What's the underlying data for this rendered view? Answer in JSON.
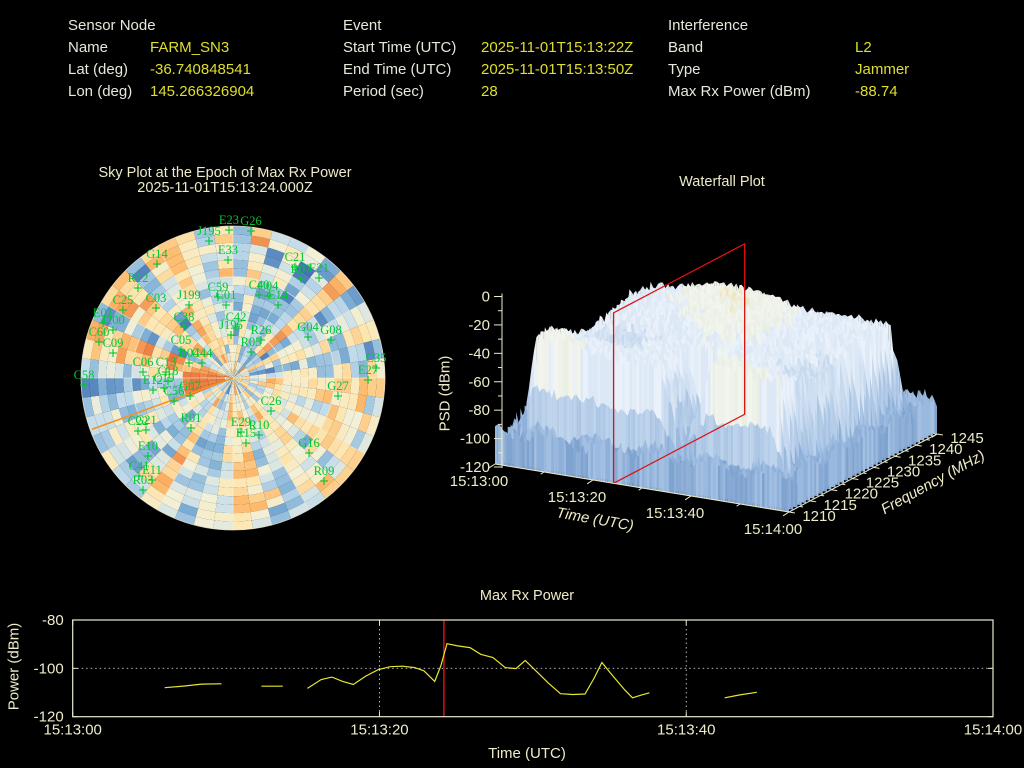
{
  "header": {
    "sensor_node": {
      "title": "Sensor Node",
      "rows": [
        {
          "label": "Name",
          "value": "FARM_SN3"
        },
        {
          "label": "Lat (deg)",
          "value": "-36.740848541"
        },
        {
          "label": "Lon (deg)",
          "value": "145.266326904"
        }
      ]
    },
    "event": {
      "title": "Event",
      "rows": [
        {
          "label": "Start Time (UTC)",
          "value": "2025-11-01T15:13:22Z"
        },
        {
          "label": "End Time (UTC)",
          "value": "2025-11-01T15:13:50Z"
        },
        {
          "label": "Period (sec)",
          "value": "28"
        }
      ]
    },
    "interference": {
      "title": "Interference",
      "rows": [
        {
          "label": "Band",
          "value": "L2"
        },
        {
          "label": "Type",
          "value": "Jammer"
        },
        {
          "label": "Max Rx Power (dBm)",
          "value": "-88.74"
        }
      ]
    }
  },
  "colors": {
    "background": "#000000",
    "label_text": "#e7e7da",
    "value_text": "#dfdf2e",
    "plot_text": "#eeebc8",
    "satellite_green": "#00c832",
    "trace_yellow": "#e6e62e",
    "epoch_red": "#dd1111",
    "bearing_orange": "#f59220",
    "heatmap_low_blue": "#3a68b0",
    "heatmap_mid_cream": "#f2f0d8",
    "heatmap_high_orange": "#e8703a",
    "surface_pale_blue": "#cfe1f3",
    "surface_cream": "#f3ebcf"
  },
  "chart_data": [
    {
      "type": "heatmap",
      "id": "skyplot",
      "title": "Sky Plot at the Epoch of Max Rx Power",
      "subtitle": "2025-11-01T15:13:24.000Z",
      "projection": "polar azimuth/elevation sky map",
      "colormap": "blue (low) / cream (mid) / orange (high)",
      "elevation_rings_deg": [
        30,
        60
      ],
      "azimuth_spoke_step_deg": 30,
      "interference_bearing_deg": 250,
      "interference_streak": {
        "azimuth_deg": [
          248,
          280
        ],
        "elevation_note": "deep orange cells near zenith toward WSW"
      },
      "satellites": [
        [
          "E23",
          229,
          230
        ],
        [
          "G26",
          251,
          231
        ],
        [
          "J195",
          209,
          241
        ],
        [
          "E33",
          228,
          260
        ],
        [
          "G14",
          157,
          264
        ],
        [
          "C21",
          295,
          267
        ],
        [
          "R07",
          301,
          279
        ],
        [
          "E21",
          319,
          278
        ],
        [
          "R12",
          138,
          288
        ],
        [
          "C59",
          218,
          297
        ],
        [
          "C01",
          226,
          305
        ],
        [
          "C40",
          259,
          295
        ],
        [
          "C04",
          268,
          296
        ],
        [
          "E14",
          278,
          305
        ],
        [
          "J199",
          189,
          305
        ],
        [
          "C03",
          156,
          308
        ],
        [
          "C25",
          123,
          310
        ],
        [
          "E01",
          103,
          323
        ],
        [
          "J200",
          113,
          330
        ],
        [
          "C60",
          99,
          342
        ],
        [
          "C09",
          113,
          353
        ],
        [
          "C38",
          184,
          327
        ],
        [
          "C05",
          181,
          350
        ],
        [
          "C42",
          236,
          327
        ],
        [
          "J196",
          231,
          335
        ],
        [
          "R26",
          261,
          340
        ],
        [
          "R05",
          251,
          352
        ],
        [
          "G04",
          308,
          337
        ],
        [
          "G08",
          331,
          340
        ],
        [
          "C35",
          376,
          368
        ],
        [
          "E27",
          368,
          380
        ],
        [
          "C06",
          143,
          372
        ],
        [
          "C13",
          166,
          372
        ],
        [
          "R04",
          189,
          363
        ],
        [
          "C44",
          202,
          363
        ],
        [
          "C18",
          168,
          381
        ],
        [
          "C19",
          164,
          388
        ],
        [
          "C58",
          84,
          385
        ],
        [
          "E12",
          153,
          390
        ],
        [
          "C56",
          174,
          401
        ],
        [
          "G07",
          190,
          396
        ],
        [
          "C22",
          138,
          431
        ],
        [
          "G21",
          146,
          430
        ],
        [
          "E10",
          148,
          456
        ],
        [
          "R01",
          191,
          428
        ],
        [
          "E29",
          241,
          432
        ],
        [
          "E15",
          246,
          443
        ],
        [
          "R10",
          259,
          435
        ],
        [
          "C26",
          271,
          411
        ],
        [
          "G27",
          338,
          396
        ],
        [
          "G16",
          309,
          453
        ],
        [
          "R09",
          324,
          481
        ],
        [
          "C41",
          139,
          476
        ],
        [
          "E11",
          152,
          480
        ],
        [
          "R03",
          143,
          490
        ]
      ]
    },
    {
      "type": "surface3d",
      "id": "waterfall",
      "title": "Waterfall Plot",
      "xlabel": "Time (UTC)",
      "ylabel": "Frequency (MHz)",
      "zlabel": "PSD (dBm)",
      "x_ticks": [
        "15:13:00",
        "15:13:20",
        "15:13:40",
        "15:14:00"
      ],
      "y_ticks": [
        1210,
        1215,
        1220,
        1225,
        1230,
        1235,
        1240,
        1245
      ],
      "z_ticks": [
        0,
        -20,
        -40,
        -60,
        -80,
        -100,
        -120
      ],
      "z_range": [
        -120,
        0
      ],
      "noise_floor_dbm": -96,
      "signal_plateau_dbm": [
        -45,
        -22
      ],
      "signal_band_mhz": [
        1213,
        1243
      ],
      "signal_active_s": [
        3,
        56
      ],
      "epoch_slice": {
        "time": "15:13:24",
        "color": "#dd1111"
      }
    },
    {
      "type": "line",
      "id": "max-rx-power",
      "title": "Max Rx Power",
      "xlabel": "Time (UTC)",
      "ylabel": "Power (dBm)",
      "x_ticks": [
        "15:13:00",
        "15:13:20",
        "15:13:40",
        "15:14:00"
      ],
      "x_tick_s": [
        0,
        20,
        40,
        60
      ],
      "y_ticks": [
        -80,
        -100,
        -120
      ],
      "y_range": [
        -120,
        -80
      ],
      "grid_y": [
        -80,
        -100
      ],
      "grid_x_s": [
        20,
        40
      ],
      "epoch_line_s": 24.2,
      "series": {
        "name": "Max Rx Power (dBm)",
        "color": "#e6e62e",
        "segments": [
          [
            [
              6,
              -108
            ],
            [
              7.3,
              -107.3
            ],
            [
              8.4,
              -106.5
            ],
            [
              9.7,
              -106.4
            ]
          ],
          [
            [
              12.3,
              -107.4
            ],
            [
              13.7,
              -107.4
            ]
          ],
          [
            [
              15.3,
              -108.3
            ],
            [
              16.2,
              -104.6
            ],
            [
              16.9,
              -103.6
            ],
            [
              17.6,
              -105.4
            ],
            [
              18.3,
              -106.7
            ],
            [
              19.1,
              -103.2
            ],
            [
              19.9,
              -100.6
            ],
            [
              20.7,
              -99.3
            ],
            [
              21.5,
              -99.1
            ],
            [
              22.3,
              -99.7
            ],
            [
              22.9,
              -101
            ],
            [
              23.6,
              -105.4
            ],
            [
              24,
              -99
            ],
            [
              24.4,
              -89.8
            ],
            [
              25.1,
              -90.7
            ],
            [
              25.9,
              -91.4
            ],
            [
              26.6,
              -94.2
            ],
            [
              27.4,
              -95.5
            ],
            [
              28.2,
              -99.7
            ],
            [
              28.9,
              -100.1
            ],
            [
              29.5,
              -96.7
            ],
            [
              30.2,
              -101
            ],
            [
              31,
              -106
            ],
            [
              31.8,
              -110.5
            ],
            [
              32.6,
              -110.8
            ],
            [
              33.4,
              -110.6
            ],
            [
              34,
              -104
            ],
            [
              34.5,
              -97.6
            ],
            [
              35.2,
              -103
            ],
            [
              36,
              -109
            ],
            [
              36.5,
              -112.2
            ],
            [
              37.1,
              -111
            ],
            [
              37.6,
              -110.1
            ]
          ],
          [
            [
              42.5,
              -112.2
            ],
            [
              43.5,
              -111
            ],
            [
              44.6,
              -109.9
            ]
          ]
        ]
      }
    }
  ]
}
